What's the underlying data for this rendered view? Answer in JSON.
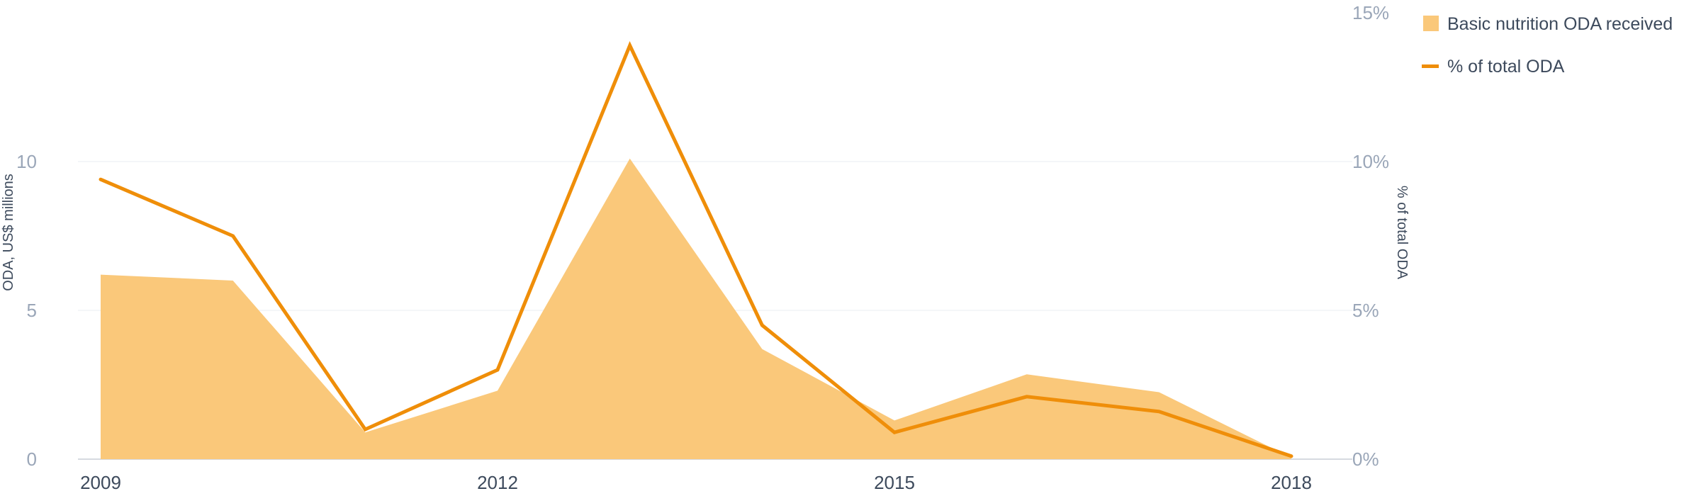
{
  "chart_data": {
    "type": "area+line",
    "x": [
      2009,
      2010,
      2011,
      2012,
      2013,
      2014,
      2015,
      2016,
      2017,
      2018
    ],
    "x_ticks": [
      2009,
      2012,
      2015,
      2018
    ],
    "series": [
      {
        "name": "Basic nutrition ODA received",
        "kind": "area",
        "axis": "left",
        "values": [
          6.2,
          6.0,
          0.9,
          2.3,
          10.1,
          3.7,
          1.3,
          2.85,
          2.25,
          0.05
        ],
        "color": "#fac87a"
      },
      {
        "name": "% of total ODA",
        "kind": "line",
        "axis": "right",
        "values": [
          9.4,
          7.5,
          1.0,
          3.0,
          13.9,
          4.5,
          0.9,
          2.1,
          1.6,
          0.1
        ],
        "color": "#ef8e09"
      }
    ],
    "y_left": {
      "label": "ODA, US$ millions",
      "range": [
        0,
        15
      ],
      "ticks": [
        0,
        5,
        10
      ]
    },
    "y_right": {
      "label": "% of total ODA",
      "range": [
        0,
        15
      ],
      "ticks": [
        0,
        5,
        10,
        15
      ],
      "tick_suffix": "%"
    },
    "legend": "top-right",
    "grid": true
  }
}
